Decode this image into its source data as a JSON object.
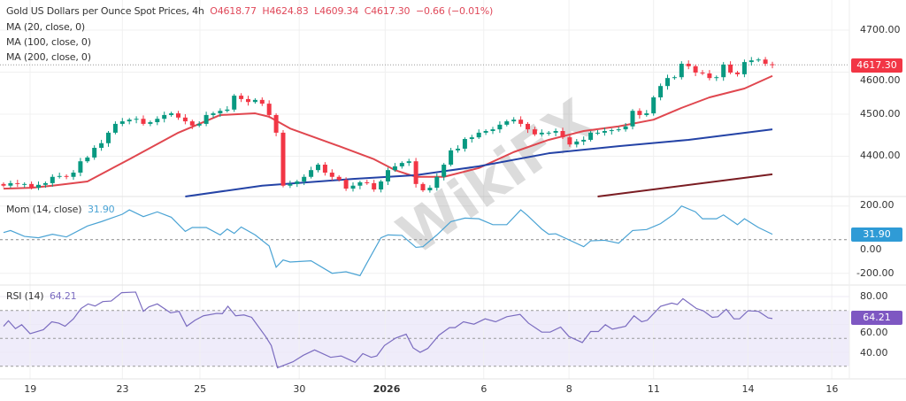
{
  "header": {
    "title": "Gold US Dollars per Ounce Spot Prices, 4h",
    "open": "O4618.77",
    "high": "H4624.83",
    "low": "L4609.34",
    "close": "C4617.30",
    "change": "−0.66 (−0.01%)",
    "ma_labels": [
      "MA (20, close, 0)",
      "MA (100, close, 0)",
      "MA (200, close, 0)"
    ]
  },
  "colors": {
    "up": "#089981",
    "down": "#f23645",
    "ma20": "#e0474f",
    "ma100": "#2443a6",
    "ma200": "#7a1c22",
    "mom": "#4aa3d4",
    "rsi": "#7b6cc0",
    "rsi_band": "#efecfa"
  },
  "watermark": "WikiFX",
  "chart_data": [
    {
      "type": "candlestick",
      "title": "Gold US Dollars per Ounce Spot Prices, 4h",
      "ylim": [
        4300,
        4720
      ],
      "y_ticks": [
        "4700.00",
        "4600.00",
        "4500.00",
        "4400.00"
      ],
      "y_tick_values": [
        4700,
        4600,
        4500,
        4400
      ],
      "last_price_label": "4617.30",
      "last_price": 4617.3,
      "x_ticks": [
        "19",
        "23",
        "25",
        "30",
        "2026",
        "6",
        "8",
        "11",
        "14",
        "16"
      ],
      "closes": [
        4330,
        4336,
        4334,
        4334,
        4325,
        4332,
        4336,
        4351,
        4353,
        4351,
        4361,
        4388,
        4397,
        4420,
        4431,
        4456,
        4477,
        4483,
        4487,
        4489,
        4477,
        4481,
        4489,
        4498,
        4502,
        4492,
        4483,
        4473,
        4477,
        4498,
        4502,
        4508,
        4511,
        4544,
        4536,
        4529,
        4534,
        4525,
        4498,
        4456,
        4330,
        4334,
        4340,
        4351,
        4367,
        4380,
        4361,
        4351,
        4344,
        4323,
        4330,
        4338,
        4336,
        4321,
        4340,
        4367,
        4376,
        4384,
        4388,
        4334,
        4319,
        4325,
        4351,
        4380,
        4414,
        4418,
        4441,
        4445,
        4456,
        4460,
        4464,
        4475,
        4483,
        4487,
        4477,
        4464,
        4452,
        4456,
        4456,
        4460,
        4445,
        4428,
        4435,
        4439,
        4456,
        4456,
        4460,
        4462,
        4464,
        4471,
        4508,
        4498,
        4502,
        4540,
        4567,
        4586,
        4588,
        4620,
        4614,
        4599,
        4597,
        4586,
        4588,
        4618,
        4599,
        4595,
        4624,
        4628,
        4630,
        4620,
        4617.3
      ],
      "last_candle": {
        "open": 4618.77,
        "high": 4624.83,
        "low": 4609.34,
        "close": 4617.3
      },
      "series": [
        {
          "name": "MA (20, close, 0)",
          "points": [
            [
              0,
              4323
            ],
            [
              4,
              4325
            ],
            [
              7,
              4330
            ],
            [
              12,
              4340
            ],
            [
              18,
              4393
            ],
            [
              25,
              4456
            ],
            [
              31,
              4498
            ],
            [
              36,
              4502
            ],
            [
              38,
              4494
            ],
            [
              41,
              4466
            ],
            [
              48,
              4424
            ],
            [
              53,
              4393
            ],
            [
              56,
              4367
            ],
            [
              59,
              4351
            ],
            [
              63,
              4351
            ],
            [
              68,
              4372
            ],
            [
              73,
              4410
            ],
            [
              78,
              4439
            ],
            [
              83,
              4460
            ],
            [
              88,
              4471
            ],
            [
              93,
              4487
            ],
            [
              97,
              4515
            ],
            [
              101,
              4540
            ],
            [
              106,
              4561
            ],
            [
              110,
              4591
            ]
          ]
        },
        {
          "name": "MA (100, close, 0)",
          "points": [
            [
              26,
              4304
            ],
            [
              37,
              4330
            ],
            [
              50,
              4346
            ],
            [
              59,
              4355
            ],
            [
              68,
              4376
            ],
            [
              78,
              4407
            ],
            [
              88,
              4424
            ],
            [
              98,
              4439
            ],
            [
              110,
              4464
            ]
          ]
        },
        {
          "name": "MA (200, close, 0)",
          "points": [
            [
              85,
              4304
            ],
            [
              110,
              4357
            ]
          ]
        }
      ]
    },
    {
      "type": "line",
      "title": "Mom (14, close)",
      "last_value": "31.90",
      "ylim": [
        -260,
        250
      ],
      "y_ticks": [
        "200.00",
        "0.00",
        "-200.00"
      ],
      "y_tick_values": [
        200,
        0,
        -200
      ],
      "reference_line": 0,
      "points": [
        [
          0,
          42
        ],
        [
          1,
          54
        ],
        [
          3,
          19
        ],
        [
          5,
          11
        ],
        [
          7,
          32
        ],
        [
          9,
          16
        ],
        [
          12,
          81
        ],
        [
          14,
          107
        ],
        [
          17,
          151
        ],
        [
          18,
          177
        ],
        [
          20,
          137
        ],
        [
          22,
          165
        ],
        [
          24,
          133
        ],
        [
          26,
          49
        ],
        [
          27,
          72
        ],
        [
          29,
          72
        ],
        [
          31,
          28
        ],
        [
          32,
          63
        ],
        [
          33,
          37
        ],
        [
          34,
          75
        ],
        [
          36,
          28
        ],
        [
          38,
          -38
        ],
        [
          39,
          -164
        ],
        [
          40,
          -121
        ],
        [
          41,
          -133
        ],
        [
          44,
          -126
        ],
        [
          47,
          -200
        ],
        [
          49,
          -191
        ],
        [
          51,
          -214
        ],
        [
          52,
          -138
        ],
        [
          54,
          11
        ],
        [
          55,
          28
        ],
        [
          57,
          25
        ],
        [
          59,
          -46
        ],
        [
          60,
          -42
        ],
        [
          62,
          28
        ],
        [
          64,
          107
        ],
        [
          66,
          128
        ],
        [
          68,
          124
        ],
        [
          70,
          89
        ],
        [
          72,
          89
        ],
        [
          74,
          177
        ],
        [
          75,
          142
        ],
        [
          77,
          63
        ],
        [
          78,
          32
        ],
        [
          79,
          35
        ],
        [
          83,
          -42
        ],
        [
          84,
          -7
        ],
        [
          86,
          -4
        ],
        [
          88,
          -21
        ],
        [
          90,
          54
        ],
        [
          92,
          60
        ],
        [
          94,
          95
        ],
        [
          96,
          154
        ],
        [
          97,
          200
        ],
        [
          99,
          165
        ],
        [
          100,
          124
        ],
        [
          102,
          124
        ],
        [
          103,
          147
        ],
        [
          105,
          89
        ],
        [
          106,
          124
        ],
        [
          108,
          72
        ],
        [
          110,
          31.9
        ]
      ]
    },
    {
      "type": "line",
      "title": "RSI (14)",
      "last_value": "64.21",
      "ylim": [
        25,
        90
      ],
      "y_ticks": [
        "80.00",
        "60.00",
        "40.00"
      ],
      "y_tick_values": [
        80,
        60,
        40
      ],
      "band": [
        30,
        70
      ],
      "reference_lines": [
        70,
        50,
        30
      ],
      "points": [
        [
          0,
          58.7
        ],
        [
          0.7,
          62.6
        ],
        [
          1.7,
          57.0
        ],
        [
          2.6,
          59.8
        ],
        [
          3.8,
          53.4
        ],
        [
          5.7,
          56.2
        ],
        [
          6.9,
          61.9
        ],
        [
          7.9,
          60.9
        ],
        [
          8.8,
          58.7
        ],
        [
          10,
          64.0
        ],
        [
          11.1,
          71.5
        ],
        [
          12.1,
          74.7
        ],
        [
          13.1,
          73.2
        ],
        [
          14.2,
          76.4
        ],
        [
          15.4,
          76.8
        ],
        [
          16.9,
          82.8
        ],
        [
          18.9,
          83.2
        ],
        [
          20,
          69.4
        ],
        [
          20.8,
          72.6
        ],
        [
          22,
          74.7
        ],
        [
          23.9,
          68.3
        ],
        [
          25.1,
          69.4
        ],
        [
          26.2,
          58.7
        ],
        [
          27.4,
          63.0
        ],
        [
          28.6,
          66.2
        ],
        [
          30.5,
          67.9
        ],
        [
          31.3,
          67.7
        ],
        [
          32.1,
          73.0
        ],
        [
          33.2,
          66.2
        ],
        [
          34.4,
          66.8
        ],
        [
          35.5,
          65.1
        ],
        [
          37.5,
          51.3
        ],
        [
          38.3,
          44.9
        ],
        [
          39.2,
          28.9
        ],
        [
          41.4,
          33.2
        ],
        [
          42.9,
          37.9
        ],
        [
          44.5,
          41.7
        ],
        [
          46.8,
          36.4
        ],
        [
          48.3,
          37.4
        ],
        [
          50.3,
          32.8
        ],
        [
          51.4,
          39.1
        ],
        [
          52.6,
          36.4
        ],
        [
          53.4,
          37.4
        ],
        [
          54.5,
          44.9
        ],
        [
          56.1,
          50.2
        ],
        [
          57.6,
          53.0
        ],
        [
          58.6,
          43.2
        ],
        [
          59.6,
          40.0
        ],
        [
          60.7,
          42.8
        ],
        [
          62.3,
          52.3
        ],
        [
          63.8,
          57.7
        ],
        [
          64.6,
          57.7
        ],
        [
          65.8,
          61.9
        ],
        [
          67.3,
          60.2
        ],
        [
          68.9,
          64.0
        ],
        [
          70.4,
          61.9
        ],
        [
          72,
          65.5
        ],
        [
          73.9,
          67.2
        ],
        [
          75.1,
          60.9
        ],
        [
          77,
          54.5
        ],
        [
          78.2,
          54.5
        ],
        [
          79.7,
          58.1
        ],
        [
          80.9,
          51.3
        ],
        [
          82.8,
          47.0
        ],
        [
          84,
          54.9
        ],
        [
          85.1,
          54.9
        ],
        [
          86.1,
          59.8
        ],
        [
          87.1,
          56.6
        ],
        [
          89,
          58.7
        ],
        [
          90.2,
          66.2
        ],
        [
          91.3,
          61.9
        ],
        [
          92.1,
          63.0
        ],
        [
          94,
          73.0
        ],
        [
          95.6,
          75.3
        ],
        [
          96.4,
          74.3
        ],
        [
          97.2,
          78.5
        ],
        [
          99.1,
          71.5
        ],
        [
          100.1,
          69.8
        ],
        [
          101.4,
          65.1
        ],
        [
          102.2,
          65.5
        ],
        [
          103.4,
          70.9
        ],
        [
          104.5,
          64.0
        ],
        [
          105.3,
          64.0
        ],
        [
          106.5,
          69.8
        ],
        [
          108,
          69.4
        ],
        [
          109.4,
          64.7
        ],
        [
          110,
          64.21
        ]
      ]
    }
  ]
}
